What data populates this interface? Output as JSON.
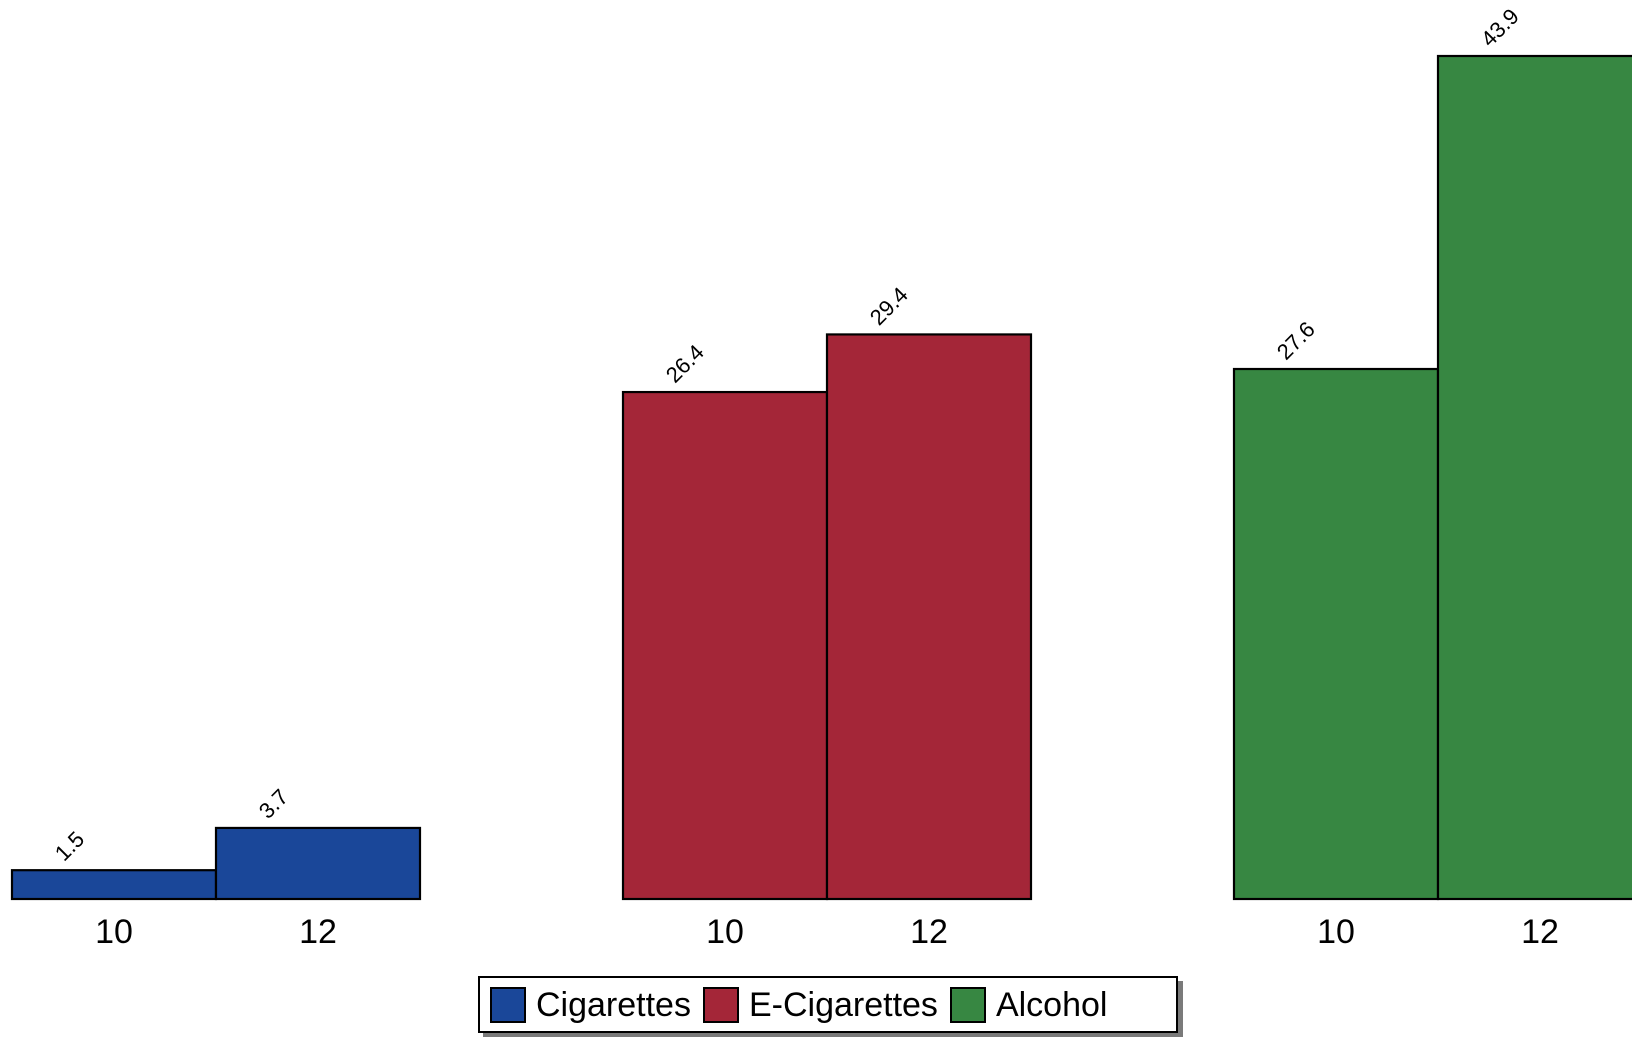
{
  "chart_data": {
    "type": "bar",
    "groups": [
      "Cigarettes",
      "E-Cigarettes",
      "Alcohol"
    ],
    "categories": [
      "10",
      "12"
    ],
    "series": [
      {
        "name": "Cigarettes",
        "values": [
          1.5,
          3.7
        ],
        "color": "#1a4799"
      },
      {
        "name": "E-Cigarettes",
        "values": [
          26.4,
          29.4
        ],
        "color": "#a42638"
      },
      {
        "name": "Alcohol",
        "values": [
          27.6,
          43.9
        ],
        "color": "#378742"
      }
    ],
    "data_labels": [
      [
        "1.5",
        "3.7"
      ],
      [
        "26.4",
        "29.4"
      ],
      [
        "27.6",
        "43.9"
      ]
    ],
    "title": "",
    "xlabel": "",
    "ylabel": "",
    "ylim": [
      0,
      45
    ],
    "grid": false,
    "legend_position": "bottom"
  },
  "legend": {
    "items": [
      {
        "label": "Cigarettes",
        "color": "#1a4799"
      },
      {
        "label": "E-Cigarettes",
        "color": "#a42638"
      },
      {
        "label": "Alcohol",
        "color": "#378742"
      }
    ]
  }
}
